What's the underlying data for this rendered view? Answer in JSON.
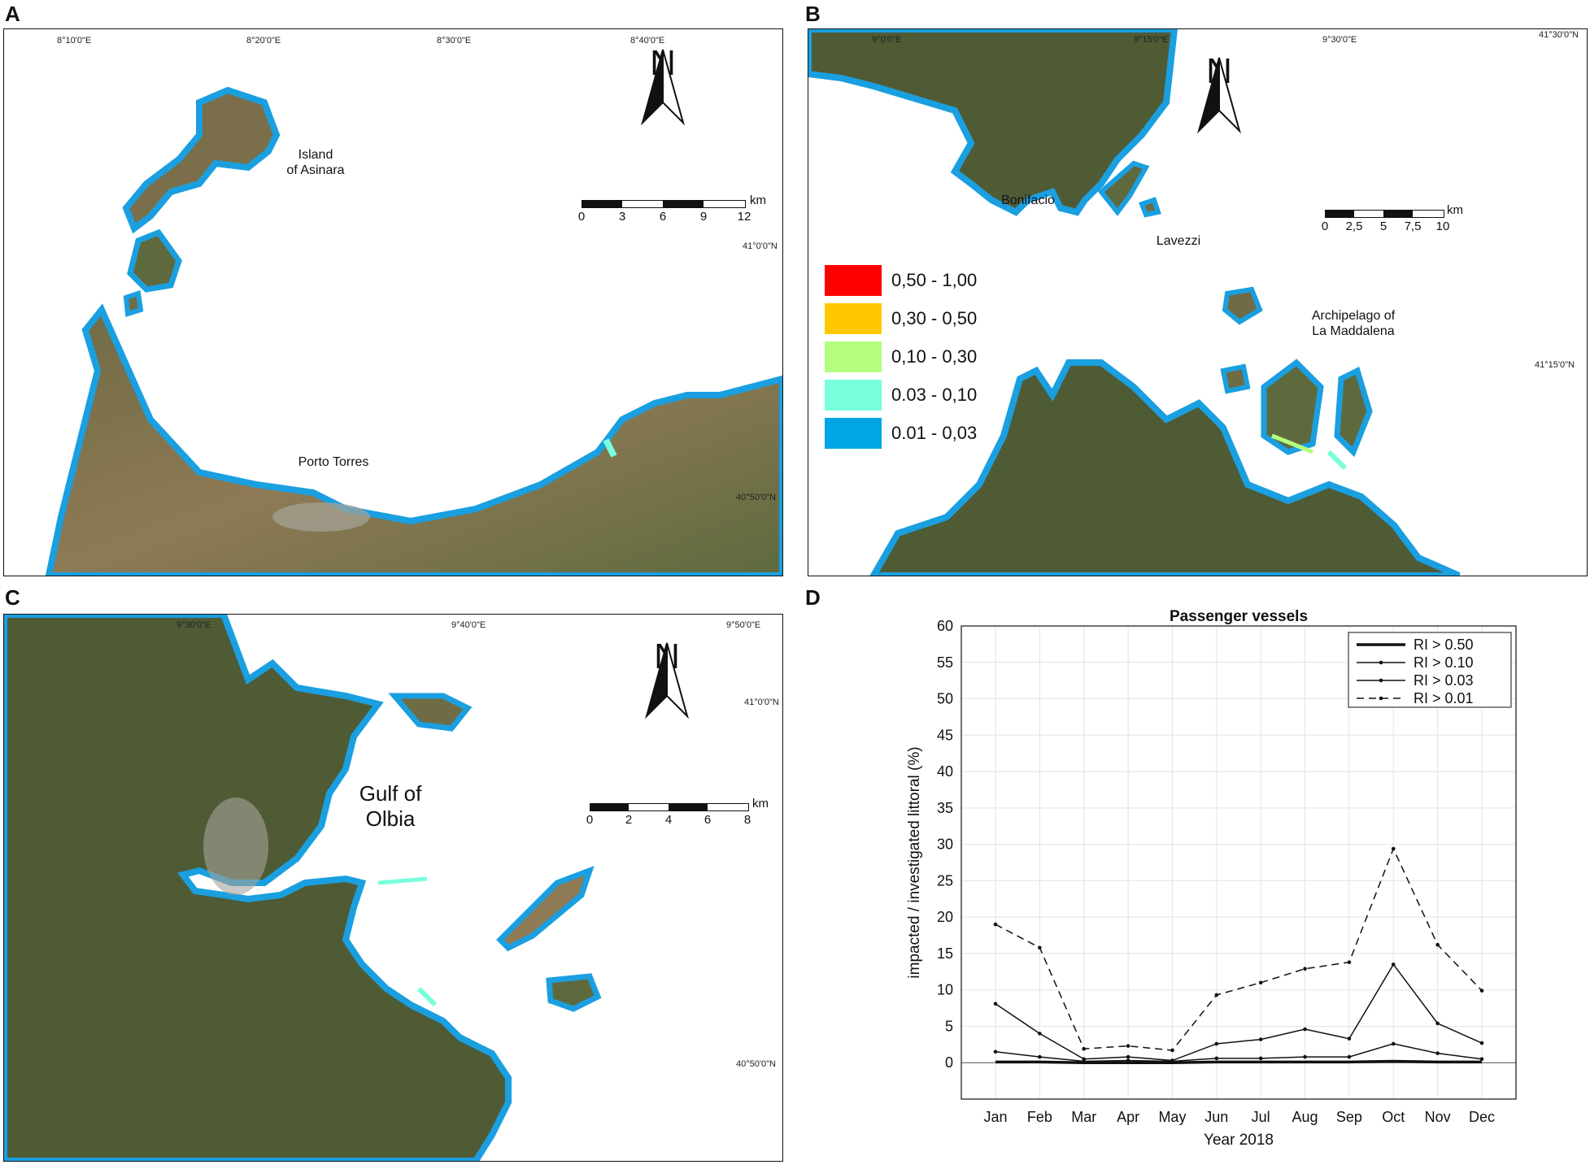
{
  "panels": {
    "a": {
      "letter": "A",
      "coords_top": [
        "8°10'0\"E",
        "8°20'0\"E",
        "8°30'0\"E",
        "8°40'0\"E"
      ],
      "coords_right": [
        "41°0'0\"N",
        "40°50'0\"N"
      ],
      "places": [
        "Island\nof Asinara",
        "Porto Torres"
      ],
      "north": "N",
      "scale": {
        "ticks": [
          "0",
          "3",
          "6",
          "9",
          "12"
        ],
        "unit": "km"
      }
    },
    "b": {
      "letter": "B",
      "coords_top": [
        "9°0'0\"E",
        "9°15'0\"E",
        "9°30'0\"E",
        "41°30'0\"N"
      ],
      "coords_right": [
        "41°15'0\"N"
      ],
      "places": [
        "Bonifacio",
        "Lavezzi",
        "Archipelago of\nLa Maddalena"
      ],
      "north": "N",
      "scale": {
        "ticks": [
          "0",
          "2,5",
          "5",
          "7,5",
          "10"
        ],
        "unit": "km"
      },
      "legend": [
        {
          "label": "0,50 - 1,00",
          "color": "#ff0000"
        },
        {
          "label": "0,30 - 0,50",
          "color": "#ffc800"
        },
        {
          "label": "0,10 - 0,30",
          "color": "#b4ff7d"
        },
        {
          "label": "0.03 - 0,10",
          "color": "#78ffdc"
        },
        {
          "label": "0.01 - 0,03",
          "color": "#00a5e6"
        }
      ]
    },
    "c": {
      "letter": "C",
      "coords_top": [
        "9°30'0\"E",
        "9°40'0\"E",
        "9°50'0\"E"
      ],
      "coords_right": [
        "41°0'0\"N",
        "40°50'0\"N"
      ],
      "places": [
        "Gulf of\nOlbia"
      ],
      "north": "N",
      "scale": {
        "ticks": [
          "0",
          "2",
          "4",
          "6",
          "8"
        ],
        "unit": "km"
      }
    },
    "d": {
      "letter": "D"
    }
  },
  "colors": {
    "coast_buffer": "#1a9fe0",
    "land_dark": "#4f5b35",
    "land_mid": "#6f6b45",
    "land_light": "#8e7a55",
    "urban": "#a7a49a"
  },
  "chart_data": {
    "type": "line",
    "title": "Passenger vessels",
    "xlabel": "Year 2018",
    "ylabel": "impacted / investigated littoral  (%)",
    "categories": [
      "Jan",
      "Feb",
      "Mar",
      "Apr",
      "May",
      "Jun",
      "Jul",
      "Aug",
      "Sep",
      "Oct",
      "Nov",
      "Dec"
    ],
    "ylim": [
      -5,
      60
    ],
    "yticks": [
      0,
      5,
      10,
      15,
      20,
      25,
      30,
      35,
      40,
      45,
      50,
      55,
      60
    ],
    "grid": true,
    "legend_position": "top-right",
    "series": [
      {
        "name": "RI > 0.50",
        "style": "thick",
        "values": [
          0.1,
          0.1,
          0.0,
          0.0,
          0.0,
          0.1,
          0.1,
          0.1,
          0.1,
          0.2,
          0.1,
          0.1
        ]
      },
      {
        "name": "RI > 0.10",
        "style": "solid",
        "values": [
          1.5,
          0.8,
          0.2,
          0.3,
          0.2,
          0.6,
          0.6,
          0.8,
          0.8,
          2.6,
          1.3,
          0.5
        ]
      },
      {
        "name": "RI > 0.03",
        "style": "solid",
        "values": [
          8.1,
          4.0,
          0.5,
          0.8,
          0.3,
          2.6,
          3.2,
          4.6,
          3.3,
          13.5,
          5.4,
          2.7
        ]
      },
      {
        "name": "RI > 0.01",
        "style": "dashed",
        "values": [
          19.0,
          15.8,
          1.9,
          2.3,
          1.7,
          9.3,
          11.0,
          12.9,
          13.8,
          29.4,
          16.2,
          9.9
        ]
      }
    ]
  }
}
